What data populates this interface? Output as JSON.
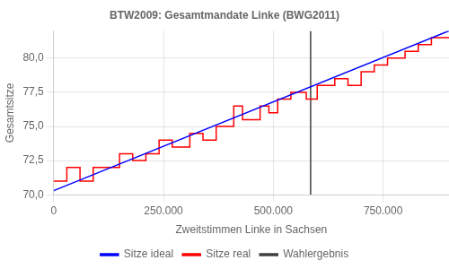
{
  "chart_data": {
    "type": "line",
    "title": "BTW2009: Gesamtmandate Linke (BWG2011)",
    "xlabel": "Zweitstimmen Linke in Sachsen",
    "ylabel": "Gesamtsitze",
    "xlim": [
      0,
      900000
    ],
    "ylim": [
      70.0,
      82.0
    ],
    "xticks": [
      0,
      {
        "value": 250000,
        "label": "250.000"
      },
      {
        "value": 500000,
        "label": "500.000"
      },
      {
        "value": 750000,
        "label": "750.000"
      }
    ],
    "yticks": [
      {
        "value": 70.0,
        "label": "70,0"
      },
      {
        "value": 72.5,
        "label": "72,5"
      },
      {
        "value": 75.0,
        "label": "75,0"
      },
      {
        "value": 77.5,
        "label": "77,5"
      },
      {
        "value": 80.0,
        "label": "80,0"
      }
    ],
    "grid": true,
    "legend": "bottom",
    "series": [
      {
        "name": "Sitze ideal",
        "color": "#0000ff",
        "x": [
          0,
          900000
        ],
        "values": [
          70.3,
          82.0
        ]
      },
      {
        "name": "Sitze real",
        "color": "#ff0000",
        "x": [
          0,
          30000,
          30000,
          60000,
          60000,
          90000,
          90000,
          150000,
          150000,
          180000,
          180000,
          210000,
          210000,
          240000,
          240000,
          270000,
          270000,
          310000,
          310000,
          340000,
          340000,
          370000,
          370000,
          410000,
          410000,
          430000,
          430000,
          470000,
          470000,
          490000,
          490000,
          510000,
          510000,
          540000,
          540000,
          575000,
          575000,
          600000,
          600000,
          640000,
          640000,
          670000,
          670000,
          700000,
          700000,
          730000,
          730000,
          760000,
          760000,
          800000,
          800000,
          830000,
          830000,
          860000,
          860000,
          900000
        ],
        "values": [
          71.0,
          71.0,
          72.0,
          72.0,
          71.0,
          71.0,
          72.0,
          72.0,
          73.0,
          73.0,
          72.5,
          72.5,
          73.0,
          73.0,
          74.0,
          74.0,
          73.5,
          73.5,
          74.5,
          74.5,
          74.0,
          74.0,
          75.0,
          75.0,
          76.5,
          76.5,
          75.5,
          75.5,
          76.5,
          76.5,
          76.0,
          76.0,
          77.0,
          77.0,
          77.5,
          77.5,
          77.0,
          77.0,
          78.0,
          78.0,
          78.5,
          78.5,
          78.0,
          78.0,
          79.0,
          79.0,
          79.5,
          79.5,
          80.0,
          80.0,
          80.5,
          80.5,
          81.0,
          81.0,
          81.5,
          81.5
        ]
      },
      {
        "name": "Wahlergebnis",
        "type": "vline",
        "color": "#404040",
        "x": 585000
      }
    ]
  }
}
